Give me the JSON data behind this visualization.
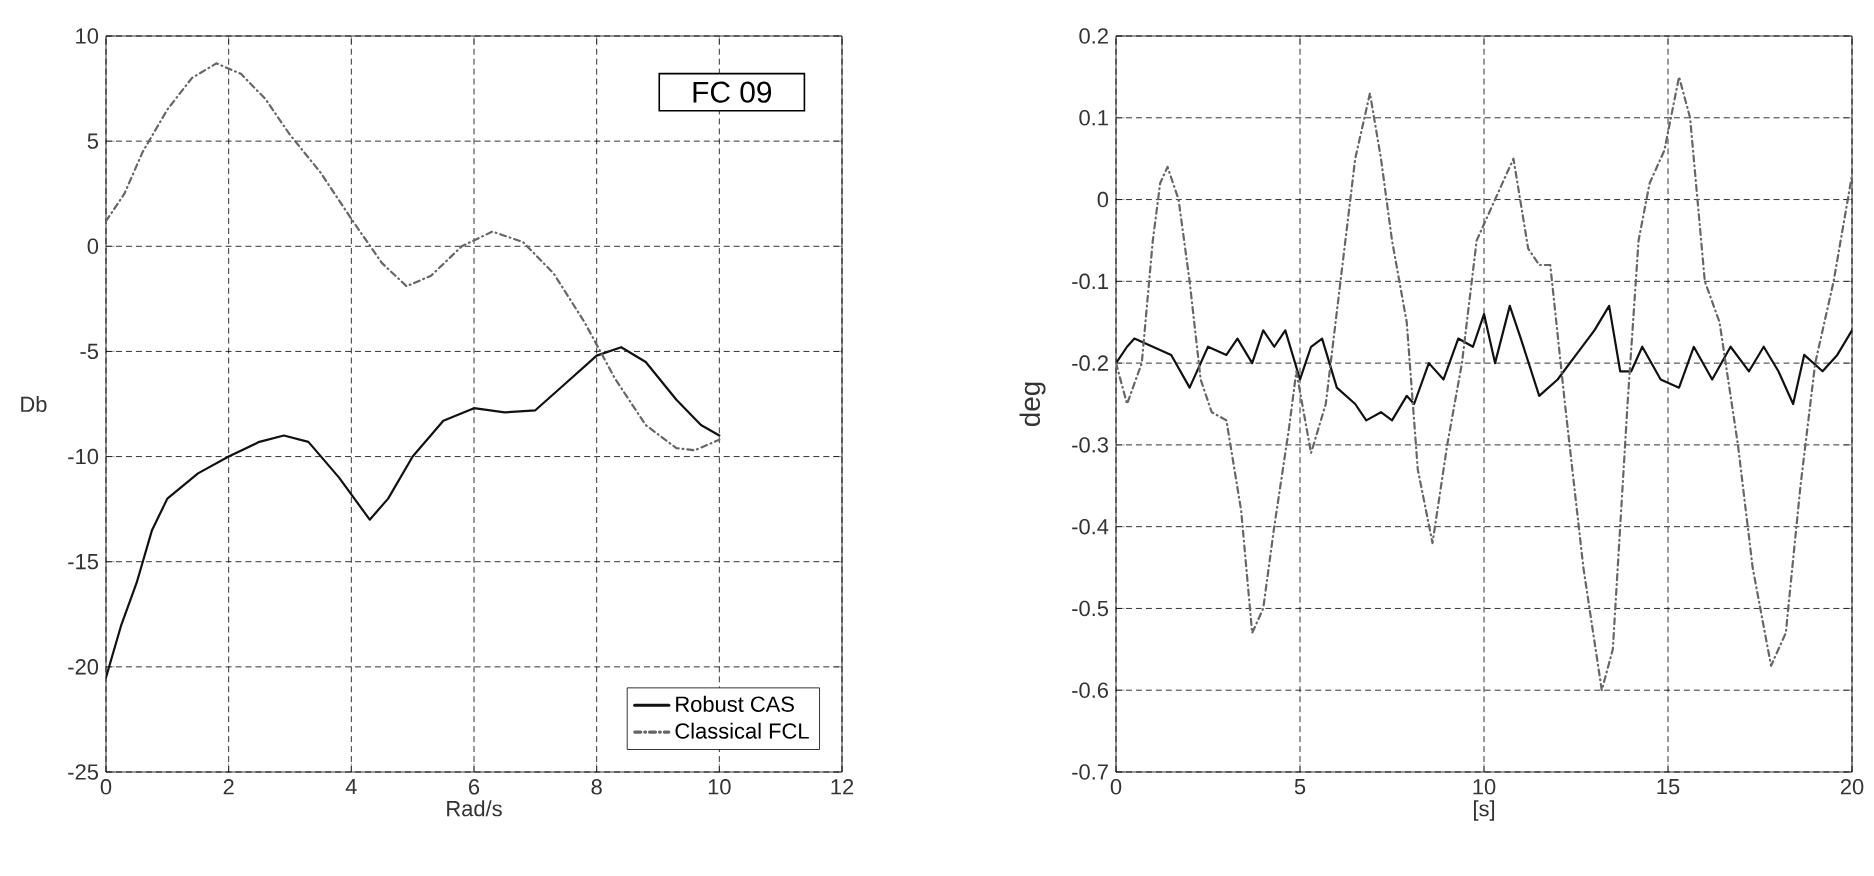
{
  "chart_data": [
    {
      "type": "line",
      "xlabel": "Rad/s",
      "ylabel": "Db",
      "xlim": [
        0,
        12
      ],
      "ylim": [
        -25,
        10
      ],
      "xticks": [
        0,
        2,
        4,
        6,
        8,
        10,
        12
      ],
      "yticks": [
        -25,
        -20,
        -15,
        -10,
        -5,
        0,
        5,
        10
      ],
      "grid": true,
      "legend": "bottom right",
      "annotations": [
        "FC 09"
      ],
      "series": [
        {
          "name": "Robust CAS",
          "color": "#111111",
          "line_style": "solid",
          "x": [
            0,
            0.25,
            0.5,
            0.75,
            1,
            1.5,
            2,
            2.5,
            2.9,
            3.3,
            3.8,
            4.3,
            4.6,
            5,
            5.5,
            6,
            6.5,
            7,
            7.5,
            8,
            8.4,
            8.8,
            9.3,
            9.7,
            10
          ],
          "values": [
            -20.5,
            -18,
            -16,
            -13.5,
            -12,
            -10.8,
            -10,
            -9.3,
            -9,
            -9.3,
            -11,
            -13,
            -12,
            -10,
            -8.3,
            -7.7,
            -7.9,
            -7.8,
            -6.5,
            -5.2,
            -4.8,
            -5.5,
            -7.3,
            -8.5,
            -9
          ]
        },
        {
          "name": "Classical FCL",
          "color": "#666666",
          "line_style": "dashdot",
          "x": [
            0,
            0.3,
            0.6,
            1,
            1.4,
            1.8,
            2.2,
            2.6,
            3,
            3.5,
            4,
            4.5,
            4.9,
            5.3,
            5.8,
            6.3,
            6.8,
            7.3,
            7.8,
            8.3,
            8.8,
            9.3,
            9.6,
            10
          ],
          "values": [
            1.2,
            2.5,
            4.5,
            6.5,
            8,
            8.7,
            8.2,
            7,
            5.3,
            3.5,
            1.3,
            -0.8,
            -1.9,
            -1.4,
            0,
            0.7,
            0.2,
            -1.3,
            -3.6,
            -6.3,
            -8.5,
            -9.6,
            -9.7,
            -9.2
          ]
        }
      ]
    },
    {
      "type": "line",
      "xlabel": "[s]",
      "ylabel": "deg",
      "xlim": [
        0,
        20
      ],
      "ylim": [
        -0.7,
        0.2
      ],
      "xticks": [
        0,
        5,
        10,
        15,
        20
      ],
      "yticks": [
        -0.7,
        -0.6,
        -0.5,
        -0.4,
        -0.3,
        -0.2,
        -0.1,
        0,
        0.1,
        0.2
      ],
      "grid": true,
      "legend": false,
      "series": [
        {
          "color": "#111111",
          "line_style": "solid",
          "x": [
            0,
            0.3,
            0.5,
            1,
            1.5,
            2,
            2.3,
            2.5,
            3,
            3.3,
            3.7,
            4,
            4.3,
            4.6,
            5,
            5.3,
            5.6,
            6,
            6.5,
            6.8,
            7.2,
            7.5,
            7.9,
            8.1,
            8.5,
            8.9,
            9.3,
            9.7,
            10,
            10.3,
            10.7,
            11,
            11.5,
            12,
            12.5,
            13,
            13.4,
            13.7,
            14,
            14.3,
            14.8,
            15.3,
            15.7,
            16.2,
            16.7,
            17.2,
            17.6,
            18,
            18.4,
            18.7,
            19.2,
            19.6,
            20
          ],
          "values": [
            -0.2,
            -0.18,
            -0.17,
            -0.18,
            -0.19,
            -0.23,
            -0.2,
            -0.18,
            -0.19,
            -0.17,
            -0.2,
            -0.16,
            -0.18,
            -0.16,
            -0.22,
            -0.18,
            -0.17,
            -0.23,
            -0.25,
            -0.27,
            -0.26,
            -0.27,
            -0.24,
            -0.25,
            -0.2,
            -0.22,
            -0.17,
            -0.18,
            -0.14,
            -0.2,
            -0.13,
            -0.17,
            -0.24,
            -0.22,
            -0.19,
            -0.16,
            -0.13,
            -0.21,
            -0.21,
            -0.18,
            -0.22,
            -0.23,
            -0.18,
            -0.22,
            -0.18,
            -0.21,
            -0.18,
            -0.21,
            -0.25,
            -0.19,
            -0.21,
            -0.19,
            -0.16
          ]
        },
        {
          "color": "#666666",
          "line_style": "dashdot",
          "x": [
            0,
            0.3,
            0.7,
            1,
            1.2,
            1.4,
            1.7,
            2,
            2.3,
            2.6,
            3,
            3.4,
            3.7,
            4,
            4.3,
            4.7,
            4.9,
            5.3,
            5.7,
            6.1,
            6.5,
            6.9,
            7.2,
            7.5,
            7.9,
            8.2,
            8.6,
            9,
            9.4,
            9.8,
            10.3,
            10.8,
            11.2,
            11.5,
            11.8,
            12.2,
            12.7,
            13.2,
            13.5,
            13.9,
            14.2,
            14.5,
            14.9,
            15.3,
            15.6,
            16,
            16.4,
            16.9,
            17.3,
            17.8,
            18.2,
            18.6,
            19,
            19.5,
            20
          ],
          "values": [
            -0.2,
            -0.25,
            -0.2,
            -0.05,
            0.02,
            0.04,
            0.0,
            -0.1,
            -0.22,
            -0.26,
            -0.27,
            -0.38,
            -0.53,
            -0.5,
            -0.4,
            -0.28,
            -0.21,
            -0.31,
            -0.25,
            -0.1,
            0.05,
            0.13,
            0.05,
            -0.05,
            -0.15,
            -0.33,
            -0.42,
            -0.3,
            -0.2,
            -0.05,
            0.0,
            0.05,
            -0.06,
            -0.08,
            -0.08,
            -0.25,
            -0.45,
            -0.6,
            -0.55,
            -0.25,
            -0.05,
            0.02,
            0.06,
            0.15,
            0.1,
            -0.1,
            -0.15,
            -0.3,
            -0.45,
            -0.57,
            -0.53,
            -0.35,
            -0.2,
            -0.1,
            0.03
          ]
        }
      ]
    }
  ]
}
